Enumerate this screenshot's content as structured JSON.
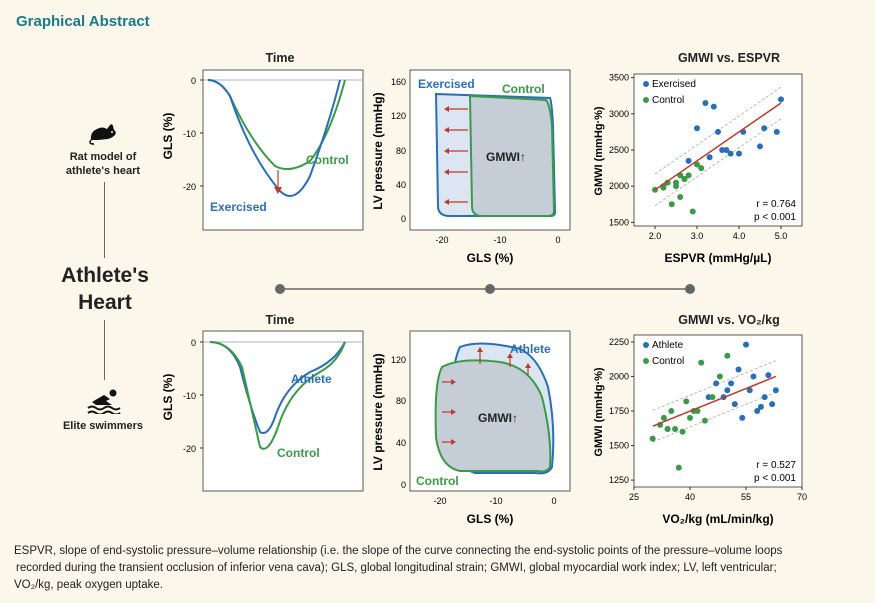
{
  "header": {
    "title": "Graphical Abstract"
  },
  "center": {
    "line1": "Athlete's",
    "line2": "Heart"
  },
  "rows": {
    "rat": {
      "label_line1": "Rat model of",
      "label_line2": "athlete's heart",
      "icon": "rat-icon",
      "strain": {
        "title": "Time",
        "ylabel": "GLS (%)",
        "yticks": [
          "0",
          "-10",
          "-20"
        ],
        "label_a": "Exercised",
        "label_b": "Control"
      },
      "pv_loop": {
        "ylabel": "LV pressure (mmHg)",
        "xlabel": "GLS (%)",
        "yticks": [
          "0",
          "40",
          "80",
          "120",
          "160"
        ],
        "xticks": [
          "-20",
          "-10",
          "0"
        ],
        "label_a": "Exercised",
        "label_b": "Control",
        "center_label": "GMWI↑"
      },
      "scatter": {
        "title": "GMWI vs. ESPVR",
        "ylabel": "GMWI (mmHg·%)",
        "xlabel": "ESPVR (mmHg/µL)",
        "legend": [
          "Exercised",
          "Control"
        ],
        "stats_r": "r = 0.764",
        "stats_p": "p < 0.001",
        "xticks": [
          "2.0",
          "3.0",
          "4.0",
          "5.0"
        ],
        "yticks": [
          "1500",
          "2000",
          "2500",
          "3000",
          "3500"
        ]
      }
    },
    "swim": {
      "label_line1": "Elite swimmers",
      "icon": "swimmer-icon",
      "strain": {
        "title": "Time",
        "ylabel": "GLS (%)",
        "yticks": [
          "0",
          "-10",
          "-20"
        ],
        "label_a": "Athlete",
        "label_b": "Control"
      },
      "pv_loop": {
        "ylabel": "LV pressure (mmHg)",
        "xlabel": "GLS (%)",
        "yticks": [
          "0",
          "40",
          "80",
          "120"
        ],
        "xticks": [
          "-20",
          "-10",
          "0"
        ],
        "label_a": "Athlete",
        "label_b": "Control",
        "center_label": "GMWI↑"
      },
      "scatter": {
        "title": "GMWI vs. VO₂/kg",
        "ylabel": "GMWI (mmHg·%)",
        "xlabel": "VO₂/kg (mL/min/kg)",
        "legend": [
          "Athlete",
          "Control"
        ],
        "stats_r": "r = 0.527",
        "stats_p": "p < 0.001",
        "xticks": [
          "25",
          "40",
          "55",
          "70"
        ],
        "yticks": [
          "1250",
          "1500",
          "1750",
          "2000",
          "2250"
        ]
      }
    }
  },
  "colors": {
    "blue": "#2a6fb5",
    "green": "#3a9a48",
    "red": "#c0392b",
    "teal": "#1a7a8c"
  },
  "caption": {
    "line1": "ESPVR, slope of end-systolic pressure–volume relationship (i.e. the slope of the curve connecting the end-systolic points of the pressure–volume loops",
    "line2": "recorded during the transient occlusion of inferior vena cava); GLS, global longitudinal strain; GMWI, global myocardial work index; LV, left ventricular;",
    "line3": "VO₂/kg, peak oxygen uptake."
  },
  "chart_data": [
    {
      "type": "scatter",
      "title": "GMWI vs. ESPVR",
      "xlabel": "ESPVR (mmHg/µL)",
      "ylabel": "GMWI (mmHg·%)",
      "xlim": [
        1.5,
        5.5
      ],
      "ylim": [
        1450,
        3550
      ],
      "series": [
        {
          "name": "Exercised",
          "color": "#2a6fb5",
          "x": [
            3.2,
            3.4,
            3.0,
            4.5,
            4.1,
            5.0,
            4.9,
            4.0,
            3.6,
            3.8,
            3.3,
            4.6,
            2.8,
            3.5,
            3.7
          ],
          "y": [
            3150,
            3100,
            2800,
            2550,
            2750,
            3200,
            2750,
            2450,
            2500,
            2450,
            2400,
            2800,
            2350,
            2750,
            2500
          ]
        },
        {
          "name": "Control",
          "color": "#3a9a48",
          "x": [
            2.0,
            2.2,
            2.3,
            2.5,
            2.6,
            2.7,
            2.9,
            2.4,
            2.8,
            3.1,
            2.6,
            2.2,
            3.0,
            2.5,
            2.7
          ],
          "y": [
            1950,
            1980,
            2050,
            2000,
            2150,
            2100,
            1650,
            1750,
            2150,
            2250,
            1850,
            2000,
            2300,
            2050,
            2100
          ]
        }
      ],
      "trend": {
        "x": [
          2.0,
          5.0
        ],
        "y": [
          1950,
          3150
        ]
      },
      "stats": {
        "r": 0.764,
        "p": "< 0.001"
      }
    },
    {
      "type": "scatter",
      "title": "GMWI vs. VO₂/kg",
      "xlabel": "VO₂/kg (mL/min/kg)",
      "ylabel": "GMWI (mmHg·%)",
      "xlim": [
        25,
        70
      ],
      "ylim": [
        1200,
        2300
      ],
      "series": [
        {
          "name": "Athlete",
          "color": "#2a6fb5",
          "x": [
            45,
            47,
            50,
            52,
            53,
            55,
            56,
            58,
            60,
            62,
            63,
            57,
            54,
            49,
            51,
            59,
            61
          ],
          "y": [
            1850,
            1950,
            1900,
            1800,
            2050,
            2230,
            1900,
            1750,
            1850,
            1800,
            1900,
            2000,
            1700,
            1850,
            1950,
            1780,
            2010
          ]
        },
        {
          "name": "Control",
          "color": "#3a9a48",
          "x": [
            30,
            32,
            33,
            34,
            35,
            36,
            38,
            40,
            42,
            44,
            46,
            48,
            50,
            37,
            39,
            41,
            34,
            43
          ],
          "y": [
            1550,
            1650,
            1700,
            1620,
            1750,
            1620,
            1600,
            1700,
            1750,
            1680,
            1850,
            2000,
            2150,
            1340,
            1820,
            1750,
            1620,
            2100
          ]
        }
      ],
      "trend": {
        "x": [
          30,
          63
        ],
        "y": [
          1640,
          2000
        ]
      },
      "stats": {
        "r": 0.527,
        "p": "< 0.001"
      }
    }
  ]
}
